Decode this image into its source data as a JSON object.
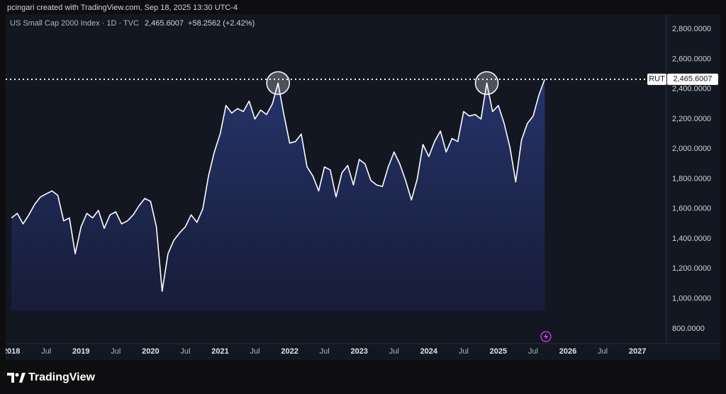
{
  "credit": "pcingari created with TradingView.com, Sep 18, 2025 13:30 UTC-4",
  "footer": {
    "brand": "TradingView"
  },
  "chart_data": {
    "type": "area",
    "title": "US Small Cap 2000 Index · 1D · TVC",
    "change": "+58.2562 (+2.42%)",
    "x": [
      "2018-01",
      "2018-02",
      "2018-03",
      "2018-04",
      "2018-05",
      "2018-06",
      "2018-07",
      "2018-08",
      "2018-09",
      "2018-10",
      "2018-11",
      "2018-12",
      "2019-01",
      "2019-02",
      "2019-03",
      "2019-04",
      "2019-05",
      "2019-06",
      "2019-07",
      "2019-08",
      "2019-09",
      "2019-10",
      "2019-11",
      "2019-12",
      "2020-01",
      "2020-02",
      "2020-03",
      "2020-04",
      "2020-05",
      "2020-06",
      "2020-07",
      "2020-08",
      "2020-09",
      "2020-10",
      "2020-11",
      "2020-12",
      "2021-01",
      "2021-02",
      "2021-03",
      "2021-04",
      "2021-05",
      "2021-06",
      "2021-07",
      "2021-08",
      "2021-09",
      "2021-10",
      "2021-11",
      "2021-12",
      "2022-01",
      "2022-02",
      "2022-03",
      "2022-04",
      "2022-05",
      "2022-06",
      "2022-07",
      "2022-08",
      "2022-09",
      "2022-10",
      "2022-11",
      "2022-12",
      "2023-01",
      "2023-02",
      "2023-03",
      "2023-04",
      "2023-05",
      "2023-06",
      "2023-07",
      "2023-08",
      "2023-09",
      "2023-10",
      "2023-11",
      "2023-12",
      "2024-01",
      "2024-02",
      "2024-03",
      "2024-04",
      "2024-05",
      "2024-06",
      "2024-07",
      "2024-08",
      "2024-09",
      "2024-10",
      "2024-11",
      "2024-12",
      "2025-01",
      "2025-02",
      "2025-03",
      "2025-04",
      "2025-05",
      "2025-06",
      "2025-07",
      "2025-08",
      "2025-09"
    ],
    "series": [
      {
        "name": "RUT",
        "color": "#ffffff",
        "values": [
          1540,
          1570,
          1500,
          1560,
          1630,
          1680,
          1700,
          1720,
          1690,
          1520,
          1540,
          1300,
          1480,
          1570,
          1540,
          1590,
          1470,
          1560,
          1580,
          1500,
          1520,
          1560,
          1620,
          1670,
          1650,
          1480,
          1050,
          1300,
          1390,
          1440,
          1480,
          1560,
          1510,
          1600,
          1820,
          1980,
          2100,
          2290,
          2240,
          2270,
          2250,
          2320,
          2200,
          2260,
          2230,
          2300,
          2440,
          2230,
          2040,
          2050,
          2100,
          1880,
          1820,
          1720,
          1880,
          1860,
          1680,
          1840,
          1890,
          1760,
          1930,
          1900,
          1790,
          1760,
          1750,
          1880,
          1980,
          1900,
          1790,
          1660,
          1800,
          2030,
          1950,
          2050,
          2120,
          1980,
          2070,
          2050,
          2250,
          2220,
          2230,
          2200,
          2440,
          2250,
          2290,
          2170,
          2010,
          1780,
          2060,
          2170,
          2220,
          2360,
          2465.6007
        ]
      }
    ],
    "price_line": {
      "name": "RUT",
      "value": 2465.6007,
      "label": "2,465.6007"
    },
    "xlim": [
      "2017-12",
      "2027-06"
    ],
    "xticks": [
      {
        "value": "2018-01",
        "label": "2018"
      },
      {
        "value": "2018-07",
        "label": "Jul"
      },
      {
        "value": "2019-01",
        "label": "2019"
      },
      {
        "value": "2019-07",
        "label": "Jul"
      },
      {
        "value": "2020-01",
        "label": "2020"
      },
      {
        "value": "2020-07",
        "label": "Jul"
      },
      {
        "value": "2021-01",
        "label": "2021"
      },
      {
        "value": "2021-07",
        "label": "Jul"
      },
      {
        "value": "2022-01",
        "label": "2022"
      },
      {
        "value": "2022-07",
        "label": "Jul"
      },
      {
        "value": "2023-01",
        "label": "2023"
      },
      {
        "value": "2023-07",
        "label": "Jul"
      },
      {
        "value": "2024-01",
        "label": "2024"
      },
      {
        "value": "2024-07",
        "label": "Jul"
      },
      {
        "value": "2025-01",
        "label": "2025"
      },
      {
        "value": "2025-07",
        "label": "Jul"
      },
      {
        "value": "2026-01",
        "label": "2026"
      },
      {
        "value": "2026-07",
        "label": "Jul"
      },
      {
        "value": "2027-01",
        "label": "2027"
      }
    ],
    "ylim": [
      700,
      2900
    ],
    "yticks": [
      {
        "value": 800,
        "label": "800.0000"
      },
      {
        "value": 1000,
        "label": "1,000.0000"
      },
      {
        "value": 1200,
        "label": "1,200.0000"
      },
      {
        "value": 1400,
        "label": "1,400.0000"
      },
      {
        "value": 1600,
        "label": "1,600.0000"
      },
      {
        "value": 1800,
        "label": "1,800.0000"
      },
      {
        "value": 2000,
        "label": "2,000.0000"
      },
      {
        "value": 2200,
        "label": "2,200.0000"
      },
      {
        "value": 2400,
        "label": "2,400.0000"
      },
      {
        "value": 2600,
        "label": "2,600.0000"
      },
      {
        "value": 2800,
        "label": "2,800.0000"
      }
    ],
    "grid": false
  }
}
